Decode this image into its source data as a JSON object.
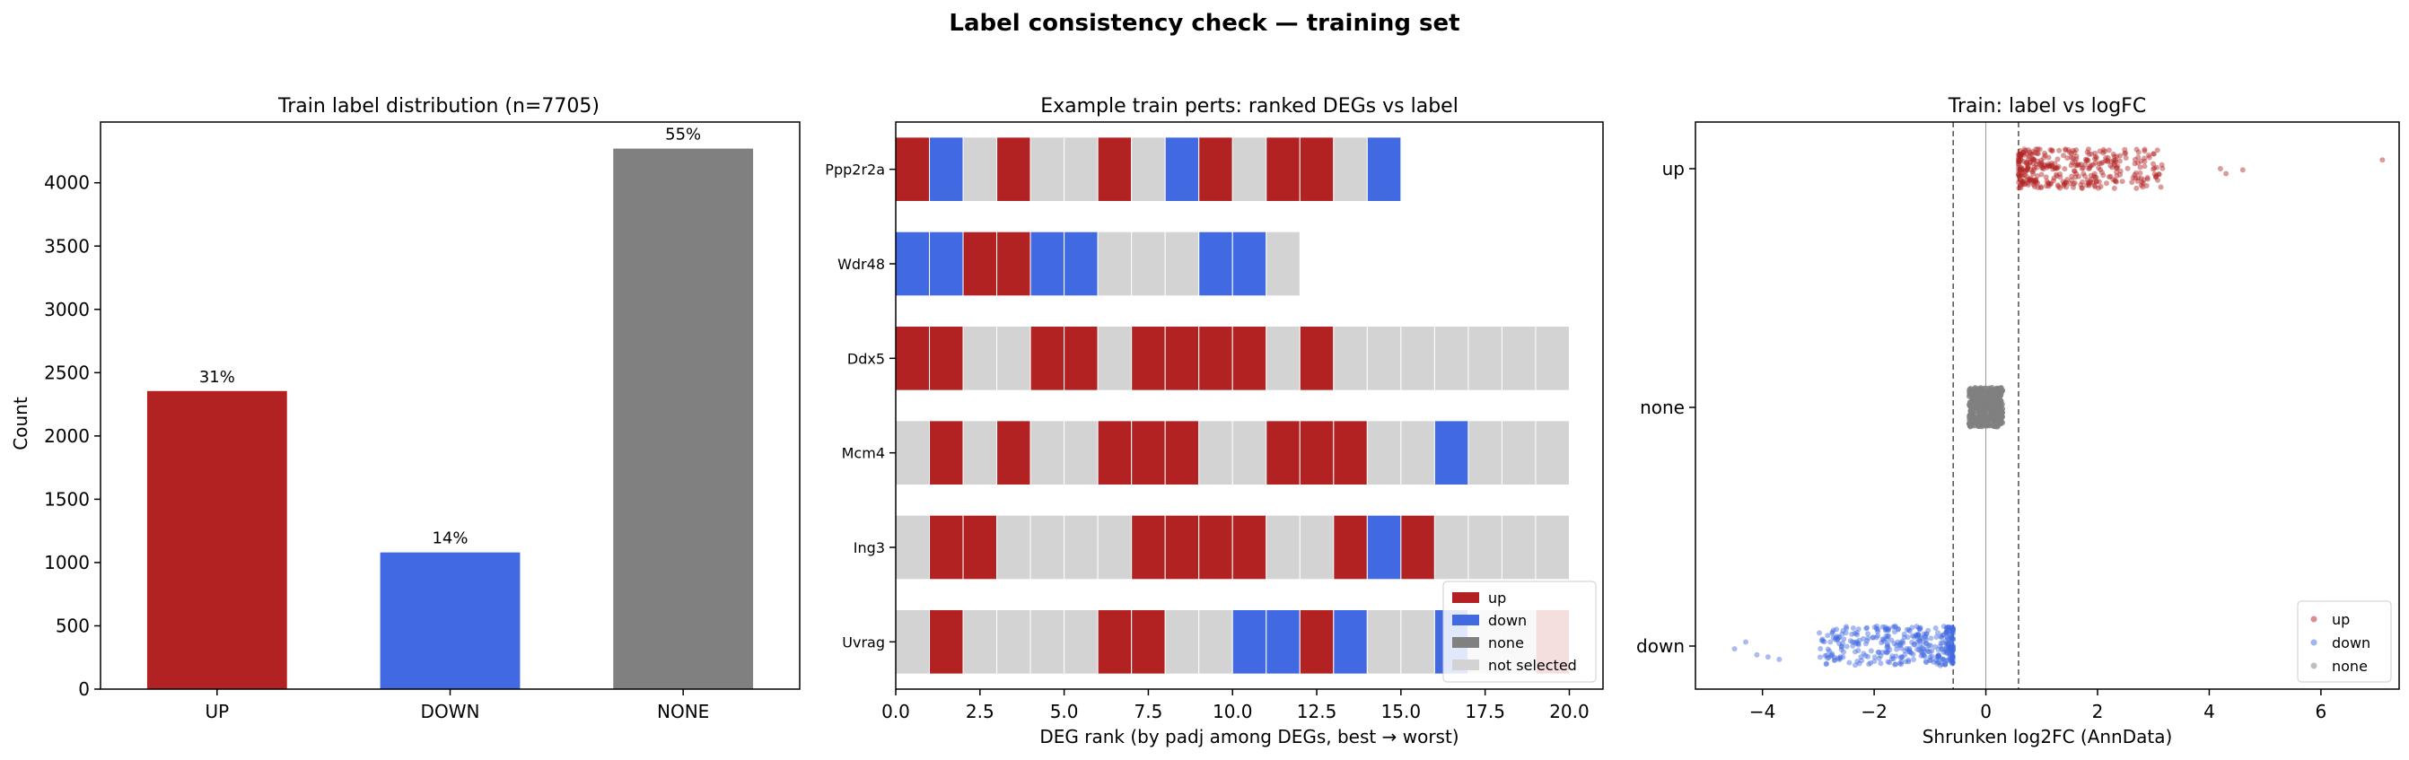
{
  "figure": {
    "title": "Label consistency check — training set"
  },
  "colors": {
    "up": "#b22222",
    "down": "#4169e1",
    "none": "#808080",
    "not_selected": "#d3d3d3"
  },
  "chart_data": [
    {
      "type": "bar",
      "title": "Train label distribution (n=7705)",
      "xlabel": "",
      "ylabel": "Count",
      "categories": [
        "UP",
        "DOWN",
        "NONE"
      ],
      "values": [
        2355,
        1080,
        4270
      ],
      "bar_labels": [
        "31%",
        "14%",
        "55%"
      ],
      "colors": [
        "#b22222",
        "#4169e1",
        "#808080"
      ],
      "ylim": [
        0,
        4480
      ],
      "yticks": [
        0,
        500,
        1000,
        1500,
        2000,
        2500,
        3000,
        3500,
        4000
      ],
      "grid": false
    },
    {
      "type": "heatmap",
      "title": "Example train perts: ranked DEGs vs label",
      "xlabel": "DEG rank (by padj among DEGs, best → worst)",
      "ylabel": "",
      "xlim": [
        0,
        21
      ],
      "xticks": [
        "0.0",
        "2.5",
        "5.0",
        "7.5",
        "10.0",
        "12.5",
        "15.0",
        "17.5",
        "20.0"
      ],
      "grid": false,
      "legend_position": "bottom-right",
      "legend": [
        {
          "key": "up",
          "label": "up"
        },
        {
          "key": "down",
          "label": "down"
        },
        {
          "key": "none",
          "label": "none"
        },
        {
          "key": "not_selected",
          "label": "not selected"
        }
      ],
      "rows": [
        {
          "name": "Ppp2r2a",
          "cells": [
            "up",
            "down",
            "not_selected",
            "up",
            "not_selected",
            "not_selected",
            "up",
            "not_selected",
            "down",
            "up",
            "not_selected",
            "up",
            "up",
            "not_selected",
            "down"
          ]
        },
        {
          "name": "Wdr48",
          "cells": [
            "down",
            "down",
            "up",
            "up",
            "down",
            "down",
            "not_selected",
            "not_selected",
            "not_selected",
            "down",
            "down",
            "not_selected"
          ]
        },
        {
          "name": "Ddx5",
          "cells": [
            "up",
            "up",
            "not_selected",
            "not_selected",
            "up",
            "up",
            "not_selected",
            "up",
            "up",
            "up",
            "up",
            "not_selected",
            "up",
            "not_selected",
            "not_selected",
            "not_selected",
            "not_selected",
            "not_selected",
            "not_selected",
            "not_selected"
          ]
        },
        {
          "name": "Mcm4",
          "cells": [
            "not_selected",
            "up",
            "not_selected",
            "up",
            "not_selected",
            "not_selected",
            "up",
            "up",
            "up",
            "not_selected",
            "not_selected",
            "up",
            "up",
            "up",
            "not_selected",
            "not_selected",
            "down",
            "not_selected",
            "not_selected",
            "not_selected"
          ]
        },
        {
          "name": "Ing3",
          "cells": [
            "not_selected",
            "up",
            "up",
            "not_selected",
            "not_selected",
            "not_selected",
            "not_selected",
            "up",
            "up",
            "up",
            "up",
            "not_selected",
            "not_selected",
            "up",
            "down",
            "up",
            "not_selected",
            "not_selected",
            "not_selected",
            "not_selected"
          ]
        },
        {
          "name": "Uvrag",
          "cells": [
            "not_selected",
            "up",
            "not_selected",
            "not_selected",
            "not_selected",
            "not_selected",
            "up",
            "up",
            "not_selected",
            "not_selected",
            "down",
            "down",
            "up",
            "down",
            "not_selected",
            "not_selected",
            "down",
            "not_selected",
            "not_selected",
            "up"
          ]
        }
      ]
    },
    {
      "type": "scatter",
      "title": "Train: label vs logFC",
      "xlabel": "Shrunken log2FC (AnnData)",
      "ylabel": "",
      "categories": [
        "down",
        "none",
        "up"
      ],
      "xlim": [
        -5.2,
        7.4
      ],
      "xticks": [
        -4,
        -2,
        0,
        2,
        4,
        6
      ],
      "vlines": [
        -0.585,
        0.0,
        0.585
      ],
      "grid": false,
      "legend_position": "bottom-right",
      "series": [
        {
          "name": "up",
          "n": 2355,
          "x_min": 0.585,
          "x_max": 7.1,
          "outliers": [
            4.2,
            4.3,
            4.6,
            7.1
          ]
        },
        {
          "name": "down",
          "n": 1080,
          "x_min": -4.5,
          "x_max": -0.585,
          "outliers": [
            -4.5,
            -4.3,
            -4.1,
            -3.9,
            -3.7
          ]
        },
        {
          "name": "none",
          "n": 4270,
          "x_min": -0.3,
          "x_max": 0.3,
          "outliers": []
        }
      ]
    }
  ]
}
